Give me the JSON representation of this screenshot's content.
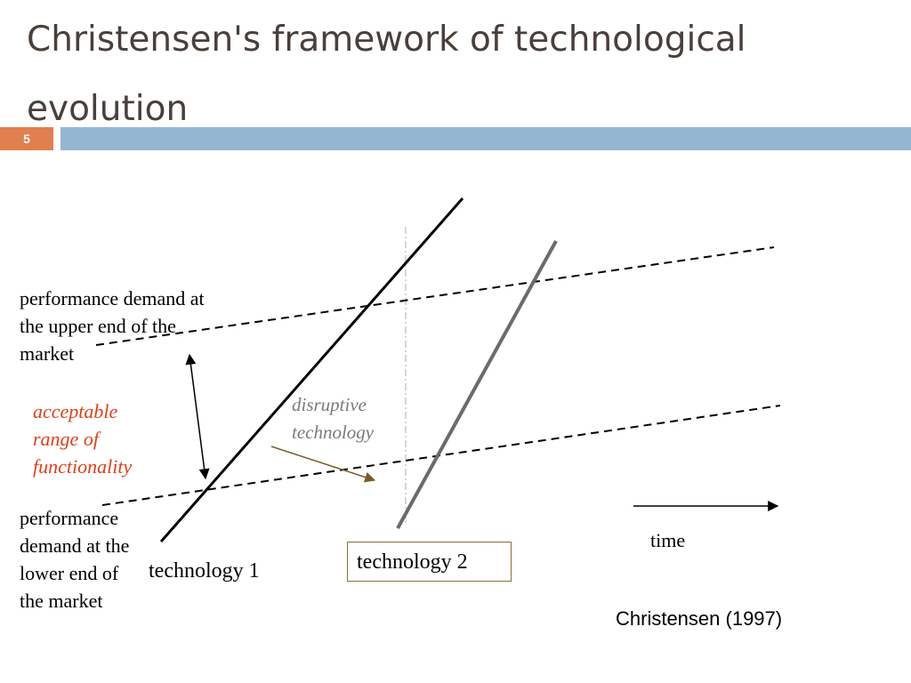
{
  "slide": {
    "title": "Christensen's framework of technological evolution",
    "number": "5"
  },
  "diagram": {
    "upper_demand_label": "performance demand at the upper end of the market",
    "lower_demand_label": "performance demand at the lower end of the market",
    "range_label": "acceptable range of functionality",
    "disruptive_label": "disruptive technology",
    "technology1_label": "technology 1",
    "technology2_label": "technology 2",
    "time_label": "time",
    "citation": "Christensen (1997)"
  },
  "colors": {
    "title_text": "#4a3f3a",
    "slide_number_box": "#e07f4f",
    "title_rule": "#94b6d2",
    "range_label": "#e0401a",
    "disruptive_label": "#7a7a7a",
    "technology2_line": "#6b6b6b",
    "disruptive_arrow": "#7a5a2a"
  }
}
